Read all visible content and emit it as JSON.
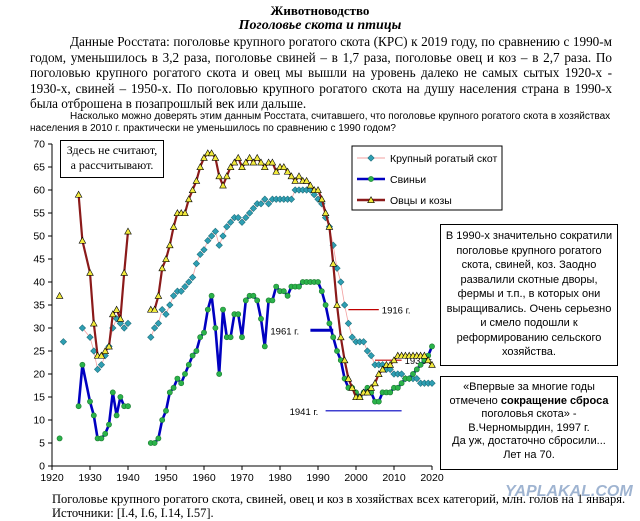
{
  "header": {
    "title": "Животноводство",
    "subtitle": "Поголовье скота и птицы"
  },
  "intro_text": "Данные Росстата: поголовье крупного рогатого скота (КРС) к 2019 году, по сравнению с 1990-м годом, уменьшилось в 3,2 раза, поголовье свиней – в 1,7 раза, поголовье овец и коз – в 2,7 раза. По поголовью крупного рогатого скота и овец мы вышли на уровень далеко не самых сытых 1920-х - 1930-х, свиней – 1950-х. По поголовью крупного рогатого скота на душу населения страна в 1990-х была отброшена в позапрошлый век или дальше.",
  "question_text": "Насколько можно доверять этим данным Росстата, считавшего, что поголовье крупного рогатого скота в хозяйствах населения в 2010 г. практически не уменьшилось по сравнению с 1990 годом?",
  "notes": {
    "not_counted_line1": "Здесь не считают,",
    "not_counted_line2": "а рассчитывают.",
    "explanation": "В 1990-х значительно сократили поголовье крупного рогатого скота, свиней, коз. Заодно развалили скотные дворы, фермы и т.п., в которых они выращивались. Очень серьезно и смело подошли к реформированию сельского хозяйства.",
    "quote_line1": "«Впервые за многие годы",
    "quote_line2_a": "отмечено ",
    "quote_line2_b": "сокращение сброса",
    "quote_line3": "поголовья скота» -",
    "quote_line4": "В.Черномырдин, 1997 г.",
    "quote_line5": "Да уж, достаточно сбросили...",
    "quote_line6": "Лет на 70."
  },
  "caption_text": "Поголовье крупного рогатого скота, свиней, овец и коз в хозяйствах всех категорий, млн. голов на 1 января. Источники: [I.4, I.6, I.14, I.57].",
  "watermark_text": "YAPLAKAL.COM",
  "chart_data": {
    "type": "line",
    "xlim": [
      1920,
      2020
    ],
    "ylim": [
      0,
      70
    ],
    "xticks": [
      1920,
      1930,
      1940,
      1950,
      1960,
      1970,
      1980,
      1990,
      2000,
      2010,
      2020
    ],
    "yticks": [
      0,
      5,
      10,
      15,
      20,
      25,
      30,
      35,
      40,
      45,
      50,
      55,
      60,
      65,
      70
    ],
    "grid": false,
    "legend_position": "top-center",
    "series": [
      {
        "name": "Крупный рогатый скот",
        "color": "#2e9fb3",
        "marker": "diamond",
        "points": [
          [
            1923,
            27
          ],
          [
            1928,
            30
          ],
          [
            1930,
            28
          ],
          [
            1931,
            25
          ],
          [
            1932,
            21
          ],
          [
            1933,
            22
          ],
          [
            1934,
            24
          ],
          [
            1935,
            26
          ],
          [
            1936,
            30
          ],
          [
            1937,
            32
          ],
          [
            1938,
            31
          ],
          [
            1939,
            30
          ],
          [
            1940,
            31
          ],
          [
            1946,
            28
          ],
          [
            1947,
            30
          ],
          [
            1948,
            31
          ],
          [
            1949,
            34
          ],
          [
            1950,
            33
          ],
          [
            1951,
            35
          ],
          [
            1952,
            37
          ],
          [
            1953,
            38
          ],
          [
            1954,
            38
          ],
          [
            1955,
            39
          ],
          [
            1956,
            40
          ],
          [
            1957,
            41
          ],
          [
            1958,
            44
          ],
          [
            1959,
            46
          ],
          [
            1960,
            47
          ],
          [
            1961,
            49
          ],
          [
            1962,
            50
          ],
          [
            1963,
            51
          ],
          [
            1964,
            48
          ],
          [
            1965,
            50
          ],
          [
            1966,
            52
          ],
          [
            1967,
            53
          ],
          [
            1968,
            54
          ],
          [
            1969,
            54
          ],
          [
            1970,
            53
          ],
          [
            1971,
            54
          ],
          [
            1972,
            55
          ],
          [
            1973,
            56
          ],
          [
            1974,
            57
          ],
          [
            1975,
            57
          ],
          [
            1976,
            58
          ],
          [
            1977,
            57
          ],
          [
            1978,
            58
          ],
          [
            1979,
            58
          ],
          [
            1980,
            58
          ],
          [
            1981,
            58
          ],
          [
            1982,
            58
          ],
          [
            1983,
            58
          ],
          [
            1984,
            60
          ],
          [
            1985,
            60
          ],
          [
            1986,
            60
          ],
          [
            1987,
            60
          ],
          [
            1988,
            60
          ],
          [
            1989,
            59
          ],
          [
            1990,
            58
          ],
          [
            1991,
            57
          ],
          [
            1992,
            54
          ],
          [
            1993,
            52
          ],
          [
            1994,
            48
          ],
          [
            1995,
            43
          ],
          [
            1996,
            40
          ],
          [
            1997,
            35
          ],
          [
            1998,
            31
          ],
          [
            1999,
            28
          ],
          [
            2000,
            27
          ],
          [
            2001,
            27
          ],
          [
            2002,
            27
          ],
          [
            2003,
            25
          ],
          [
            2004,
            24
          ],
          [
            2005,
            22
          ],
          [
            2006,
            22
          ],
          [
            2007,
            22
          ],
          [
            2008,
            21
          ],
          [
            2009,
            21
          ],
          [
            2010,
            20
          ],
          [
            2011,
            20
          ],
          [
            2012,
            20
          ],
          [
            2013,
            19
          ],
          [
            2014,
            19
          ],
          [
            2015,
            19
          ],
          [
            2016,
            19
          ],
          [
            2017,
            18
          ],
          [
            2018,
            18
          ],
          [
            2019,
            18
          ],
          [
            2020,
            18
          ]
        ]
      },
      {
        "name": "Свиньи",
        "color": "#0000c0",
        "marker": "circle",
        "points": [
          [
            1922,
            6
          ],
          [
            1927,
            13
          ],
          [
            1928,
            22
          ],
          [
            1930,
            14
          ],
          [
            1931,
            11
          ],
          [
            1932,
            6
          ],
          [
            1933,
            6
          ],
          [
            1934,
            7
          ],
          [
            1935,
            9
          ],
          [
            1936,
            16
          ],
          [
            1937,
            11
          ],
          [
            1938,
            15
          ],
          [
            1939,
            13
          ],
          [
            1940,
            13
          ],
          [
            1946,
            5
          ],
          [
            1947,
            5
          ],
          [
            1948,
            6
          ],
          [
            1949,
            10
          ],
          [
            1950,
            12
          ],
          [
            1951,
            16
          ],
          [
            1952,
            17
          ],
          [
            1953,
            19
          ],
          [
            1954,
            18
          ],
          [
            1955,
            20
          ],
          [
            1956,
            22
          ],
          [
            1957,
            24
          ],
          [
            1958,
            25
          ],
          [
            1959,
            28
          ],
          [
            1960,
            29
          ],
          [
            1961,
            34
          ],
          [
            1962,
            37
          ],
          [
            1963,
            30
          ],
          [
            1964,
            20
          ],
          [
            1965,
            34
          ],
          [
            1966,
            28
          ],
          [
            1967,
            28
          ],
          [
            1968,
            33
          ],
          [
            1969,
            33
          ],
          [
            1970,
            28
          ],
          [
            1971,
            36
          ],
          [
            1972,
            37
          ],
          [
            1973,
            37
          ],
          [
            1974,
            36
          ],
          [
            1975,
            32
          ],
          [
            1976,
            26
          ],
          [
            1977,
            36
          ],
          [
            1978,
            36
          ],
          [
            1979,
            39
          ],
          [
            1980,
            38
          ],
          [
            1981,
            38
          ],
          [
            1982,
            37
          ],
          [
            1983,
            39
          ],
          [
            1984,
            39
          ],
          [
            1985,
            39
          ],
          [
            1986,
            40
          ],
          [
            1987,
            40
          ],
          [
            1988,
            40
          ],
          [
            1989,
            40
          ],
          [
            1990,
            40
          ],
          [
            1991,
            38
          ],
          [
            1992,
            35
          ],
          [
            1993,
            31
          ],
          [
            1994,
            28
          ],
          [
            1995,
            25
          ],
          [
            1996,
            23
          ],
          [
            1997,
            19
          ],
          [
            1998,
            17
          ],
          [
            1999,
            17
          ],
          [
            2000,
            16
          ],
          [
            2001,
            15
          ],
          [
            2002,
            16
          ],
          [
            2003,
            17
          ],
          [
            2004,
            16
          ],
          [
            2005,
            14
          ],
          [
            2006,
            14
          ],
          [
            2007,
            16
          ],
          [
            2008,
            16
          ],
          [
            2009,
            16
          ],
          [
            2010,
            17
          ],
          [
            2011,
            17
          ],
          [
            2012,
            18
          ],
          [
            2013,
            19
          ],
          [
            2014,
            19
          ],
          [
            2015,
            20
          ],
          [
            2016,
            21
          ],
          [
            2017,
            22
          ],
          [
            2018,
            23
          ],
          [
            2019,
            24
          ],
          [
            2020,
            26
          ]
        ]
      },
      {
        "name": "Овцы и козы",
        "color": "#8b1a1a",
        "marker": "triangle",
        "points": [
          [
            1922,
            37
          ],
          [
            1927,
            59
          ],
          [
            1928,
            49
          ],
          [
            1930,
            42
          ],
          [
            1931,
            31
          ],
          [
            1932,
            24
          ],
          [
            1933,
            24
          ],
          [
            1934,
            25
          ],
          [
            1935,
            26
          ],
          [
            1936,
            33
          ],
          [
            1937,
            34
          ],
          [
            1938,
            32
          ],
          [
            1939,
            42
          ],
          [
            1940,
            51
          ],
          [
            1946,
            34
          ],
          [
            1947,
            34
          ],
          [
            1948,
            37
          ],
          [
            1949,
            43
          ],
          [
            1950,
            45
          ],
          [
            1951,
            48
          ],
          [
            1952,
            52
          ],
          [
            1953,
            55
          ],
          [
            1954,
            55
          ],
          [
            1955,
            55
          ],
          [
            1956,
            58
          ],
          [
            1957,
            60
          ],
          [
            1958,
            62
          ],
          [
            1959,
            65
          ],
          [
            1960,
            67
          ],
          [
            1961,
            68
          ],
          [
            1962,
            68
          ],
          [
            1963,
            67
          ],
          [
            1964,
            63
          ],
          [
            1965,
            61
          ],
          [
            1966,
            63
          ],
          [
            1967,
            65
          ],
          [
            1968,
            66
          ],
          [
            1969,
            67
          ],
          [
            1970,
            65
          ],
          [
            1971,
            66
          ],
          [
            1972,
            67
          ],
          [
            1973,
            66
          ],
          [
            1974,
            67
          ],
          [
            1975,
            66
          ],
          [
            1976,
            65
          ],
          [
            1977,
            66
          ],
          [
            1978,
            66
          ],
          [
            1979,
            64
          ],
          [
            1980,
            65
          ],
          [
            1981,
            65
          ],
          [
            1982,
            64
          ],
          [
            1983,
            63
          ],
          [
            1984,
            62
          ],
          [
            1985,
            63
          ],
          [
            1986,
            62
          ],
          [
            1987,
            62
          ],
          [
            1988,
            61
          ],
          [
            1989,
            60
          ],
          [
            1990,
            60
          ],
          [
            1991,
            58
          ],
          [
            1992,
            55
          ],
          [
            1993,
            52
          ],
          [
            1994,
            44
          ],
          [
            1995,
            35
          ],
          [
            1996,
            28
          ],
          [
            1997,
            23
          ],
          [
            1998,
            19
          ],
          [
            1999,
            17
          ],
          [
            2000,
            15
          ],
          [
            2001,
            15
          ],
          [
            2002,
            16
          ],
          [
            2003,
            16
          ],
          [
            2004,
            17
          ],
          [
            2005,
            18
          ],
          [
            2006,
            20
          ],
          [
            2007,
            21
          ],
          [
            2008,
            22
          ],
          [
            2009,
            22
          ],
          [
            2010,
            23
          ],
          [
            2011,
            24
          ],
          [
            2012,
            24
          ],
          [
            2013,
            24
          ],
          [
            2014,
            24
          ],
          [
            2015,
            24
          ],
          [
            2016,
            24
          ],
          [
            2017,
            24
          ],
          [
            2018,
            24
          ],
          [
            2019,
            23
          ],
          [
            2020,
            22
          ]
        ]
      }
    ],
    "reference_lines": [
      {
        "label": "1916 г.",
        "y": 34,
        "x_from": 1998,
        "x_to": 2006
      },
      {
        "label": "1931 г.",
        "y": 23,
        "x_from": 2005,
        "x_to": 2012
      },
      {
        "label": "1961 г.",
        "y": 29.5,
        "x_from": 1988,
        "x_to": 1994
      },
      {
        "label": "1941 г.",
        "y": 12,
        "x_from": 1992,
        "x_to": 2012
      }
    ]
  }
}
